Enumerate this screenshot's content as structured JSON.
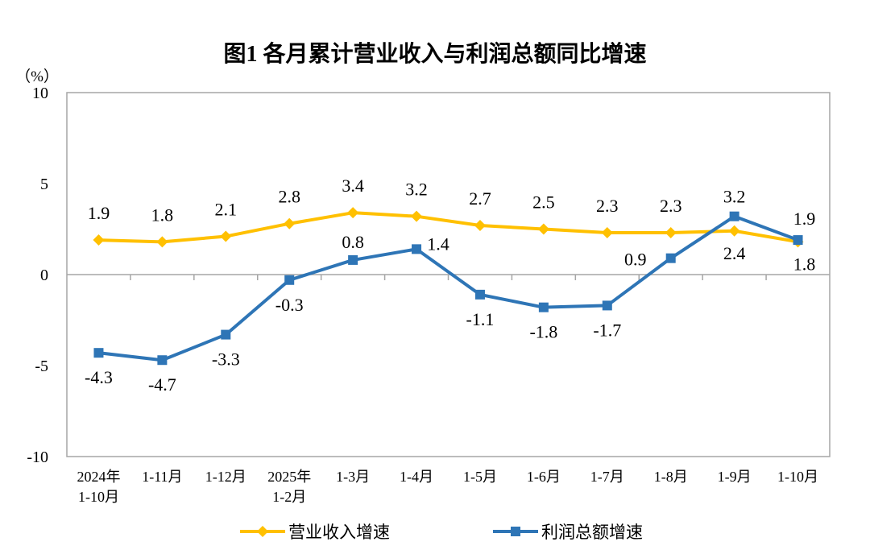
{
  "chart_data": {
    "type": "line",
    "title": "图1  各月累计营业收入与利润总额同比增速",
    "ylabel": "（%）",
    "ylim": [
      -10,
      10
    ],
    "yticks": [
      10,
      5,
      0,
      -5,
      -10
    ],
    "grid": false,
    "legend_position": "bottom",
    "categories": [
      [
        "2024年",
        "1-10月"
      ],
      [
        "1-11月"
      ],
      [
        "1-12月"
      ],
      [
        "2025年",
        "1-2月"
      ],
      [
        "1-3月"
      ],
      [
        "1-4月"
      ],
      [
        "1-5月"
      ],
      [
        "1-6月"
      ],
      [
        "1-7月"
      ],
      [
        "1-8月"
      ],
      [
        "1-9月"
      ],
      [
        "1-10月"
      ]
    ],
    "series": [
      {
        "name": "营业收入增速",
        "color": "#FFC000",
        "marker": "diamond",
        "values": [
          1.9,
          1.8,
          2.1,
          2.8,
          3.4,
          3.2,
          2.7,
          2.5,
          2.3,
          2.3,
          2.4,
          1.8
        ]
      },
      {
        "name": "利润总额增速",
        "color": "#2E75B6",
        "marker": "square",
        "values": [
          -4.3,
          -4.7,
          -3.3,
          -0.3,
          0.8,
          1.4,
          -1.1,
          -1.8,
          -1.7,
          0.9,
          3.2,
          1.9
        ]
      }
    ]
  }
}
